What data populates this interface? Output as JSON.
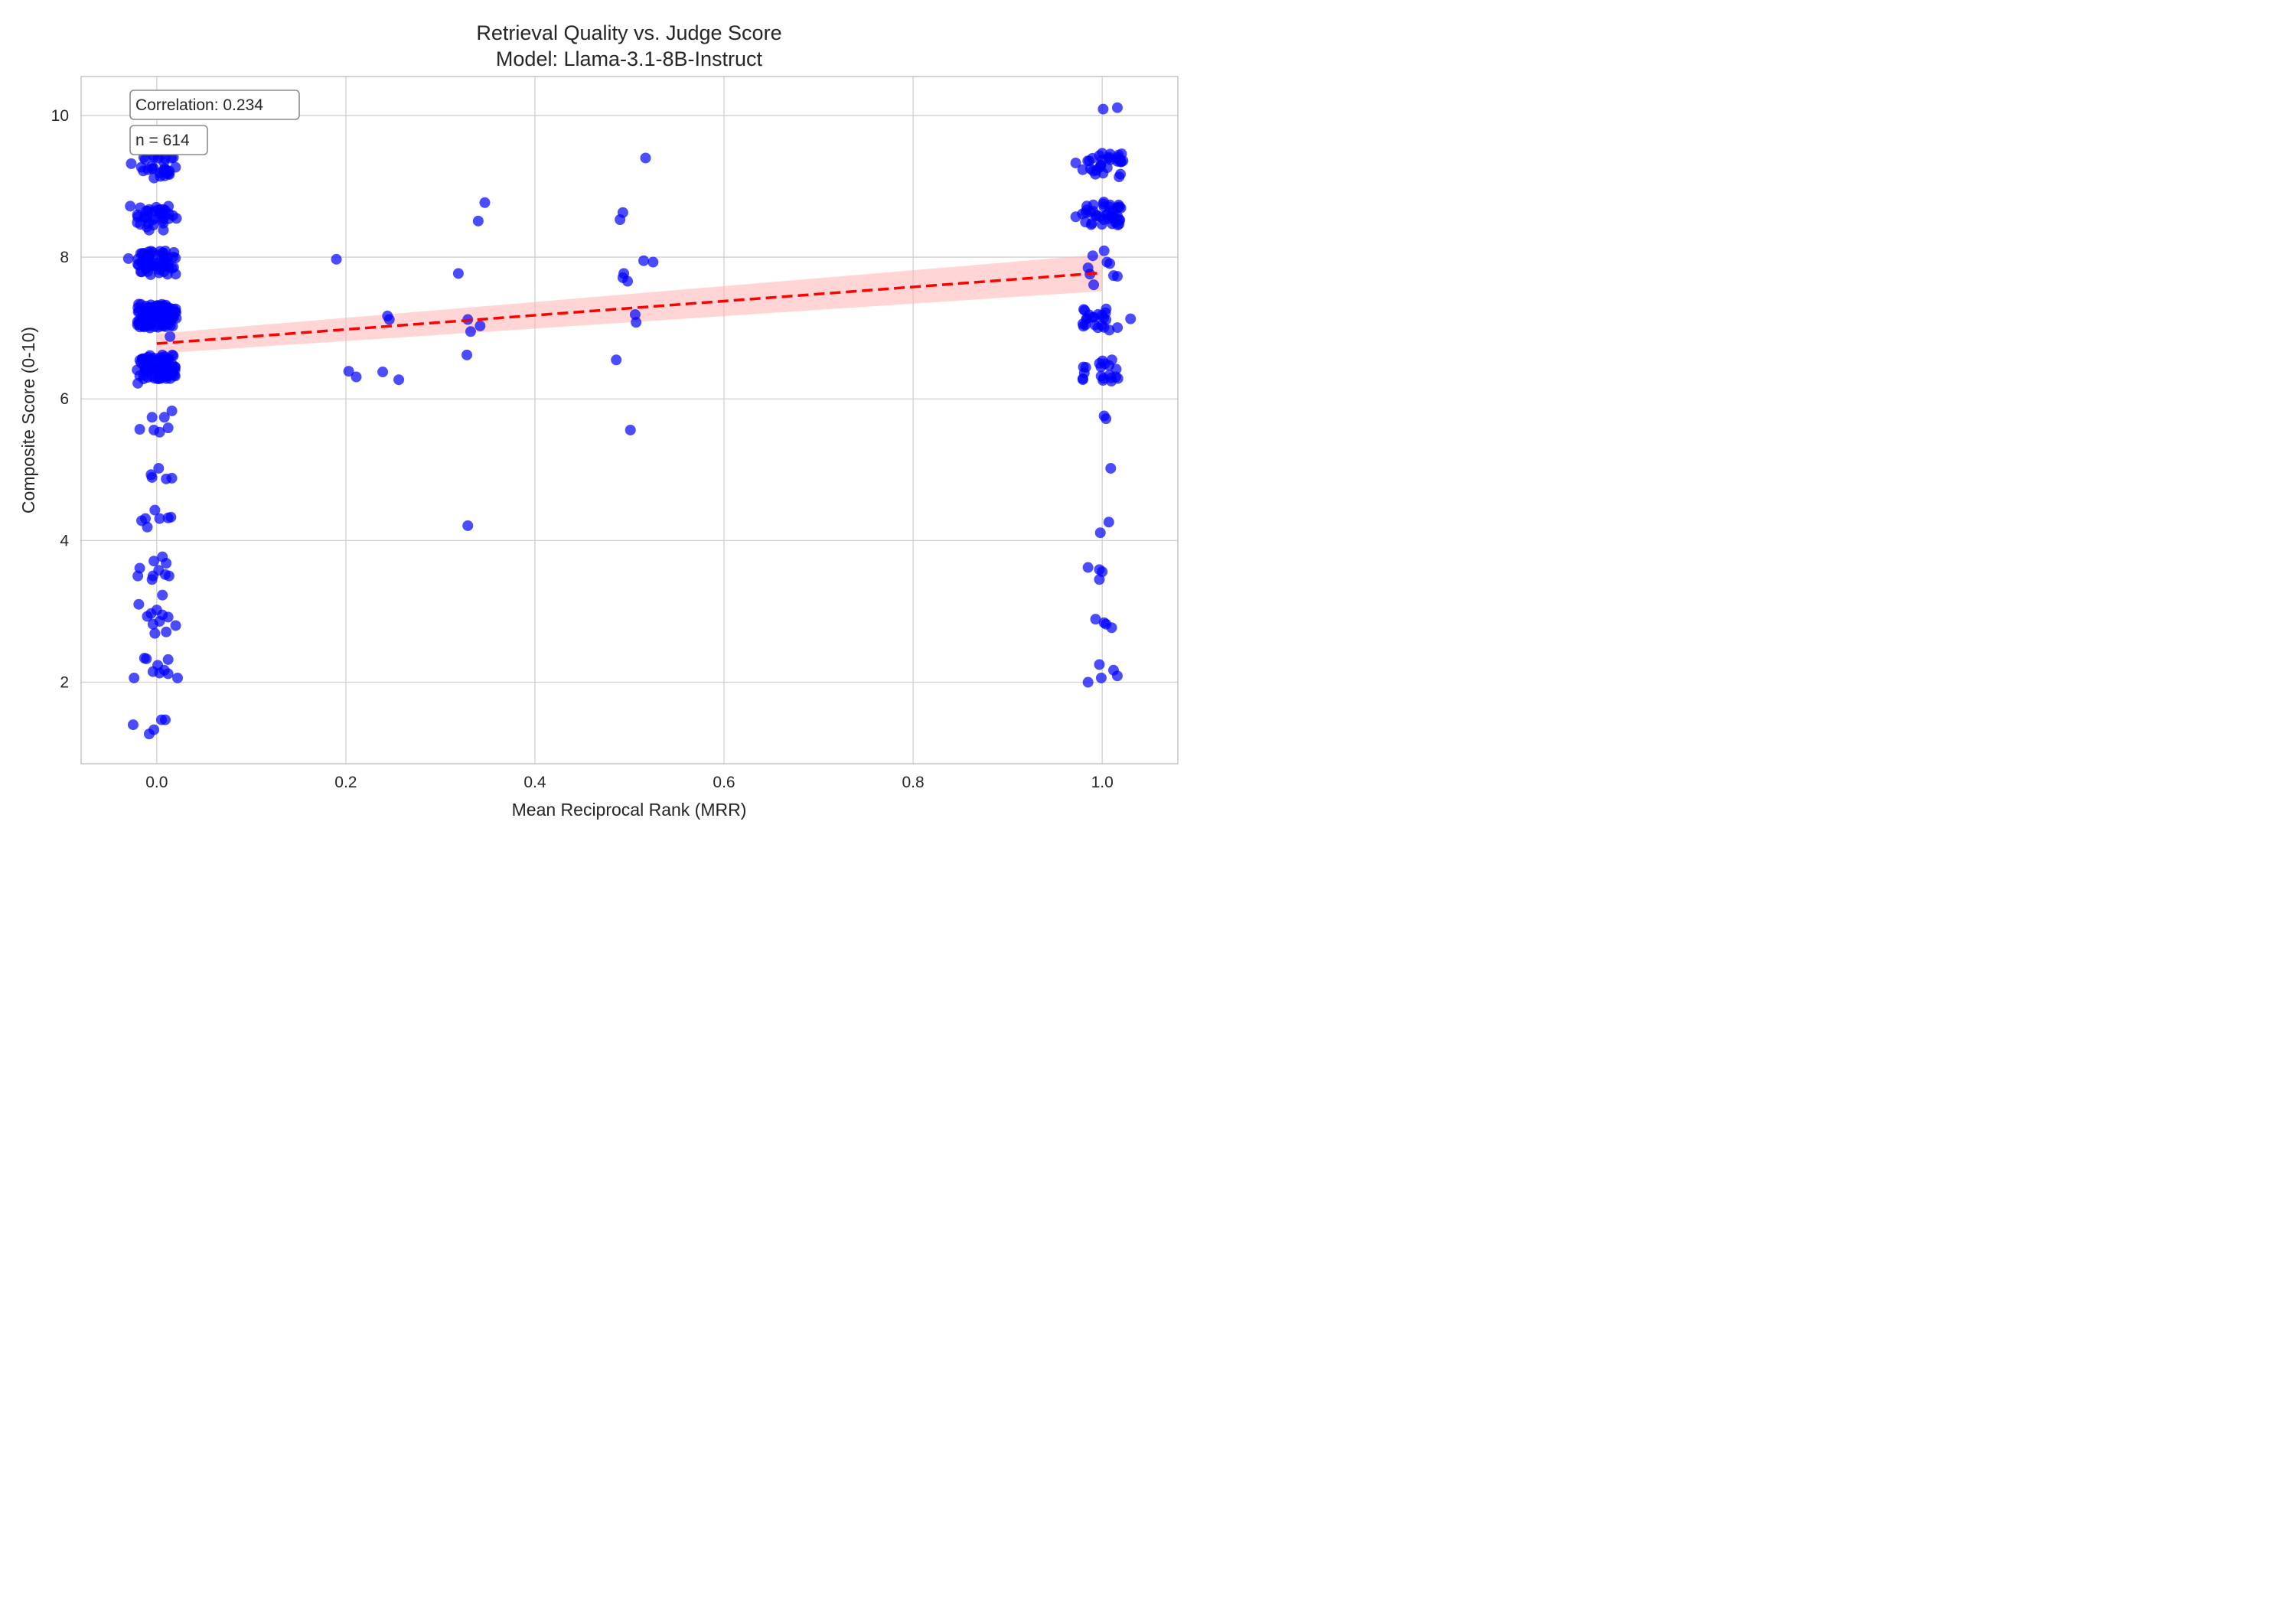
{
  "chart_data": {
    "type": "scatter",
    "title": "Retrieval Quality vs. Judge Score",
    "subtitle": "Model: Llama-3.1-8B-Instruct",
    "xlabel": "Mean Reciprocal Rank (MRR)",
    "ylabel": "Composite Score (0-10)",
    "xlim": [
      -0.08,
      1.08
    ],
    "ylim": [
      0.85,
      10.55
    ],
    "x_ticks": [
      0.0,
      0.2,
      0.4,
      0.6,
      0.8,
      1.0
    ],
    "x_tick_labels": [
      "0.0",
      "0.2",
      "0.4",
      "0.6",
      "0.8",
      "1.0"
    ],
    "y_ticks": [
      2,
      4,
      6,
      8,
      10
    ],
    "y_tick_labels": [
      "2",
      "4",
      "6",
      "8",
      "10"
    ],
    "grid": true,
    "annotations": [
      {
        "text": "Correlation: 0.234",
        "position": "top-left"
      },
      {
        "text": "n = 614",
        "position": "top-left, below correlation"
      }
    ],
    "colors": {
      "points": "#0000ff",
      "trend": "#ff0000",
      "band": "#ffb3b3",
      "grid": "#d0d0d0",
      "axes": "#c0c0c0"
    },
    "trend_line": {
      "style": "dashed",
      "x": [
        0.0,
        1.0
      ],
      "y": [
        6.78,
        7.78
      ]
    },
    "confidence_band": {
      "x": [
        0.0,
        1.0
      ],
      "lower": [
        6.64,
        7.52
      ],
      "upper": [
        6.92,
        8.04
      ]
    },
    "clusters": [
      {
        "x": 0.0,
        "y": 9.28,
        "count": 30
      },
      {
        "x": 0.0,
        "y": 8.55,
        "count": 35
      },
      {
        "x": 0.0,
        "y": 7.92,
        "count": 55
      },
      {
        "x": 0.0,
        "y": 7.17,
        "count": 95
      },
      {
        "x": 0.0,
        "y": 6.45,
        "count": 70
      },
      {
        "x": 1.0,
        "y": 9.3,
        "count": 30
      },
      {
        "x": 1.0,
        "y": 8.62,
        "count": 40
      },
      {
        "x": 1.0,
        "y": 7.12,
        "count": 22
      },
      {
        "x": 1.0,
        "y": 6.42,
        "count": 20
      }
    ],
    "points": [
      {
        "x": -0.03,
        "y": 7.98
      },
      {
        "x": -0.028,
        "y": 8.72
      },
      {
        "x": -0.027,
        "y": 9.32
      },
      {
        "x": -0.02,
        "y": 7.9
      },
      {
        "x": -0.02,
        "y": 6.22
      },
      {
        "x": -0.018,
        "y": 5.57
      },
      {
        "x": -0.005,
        "y": 5.74
      },
      {
        "x": 0.008,
        "y": 5.74
      },
      {
        "x": -0.003,
        "y": 5.56
      },
      {
        "x": 0.003,
        "y": 5.53
      },
      {
        "x": 0.012,
        "y": 5.59
      },
      {
        "x": 0.016,
        "y": 5.83
      },
      {
        "x": 0.002,
        "y": 5.02
      },
      {
        "x": -0.006,
        "y": 4.93
      },
      {
        "x": -0.005,
        "y": 4.89
      },
      {
        "x": 0.01,
        "y": 4.87
      },
      {
        "x": 0.016,
        "y": 4.88
      },
      {
        "x": -0.002,
        "y": 4.43
      },
      {
        "x": -0.012,
        "y": 4.31
      },
      {
        "x": -0.016,
        "y": 4.28
      },
      {
        "x": -0.01,
        "y": 4.19
      },
      {
        "x": 0.003,
        "y": 4.31
      },
      {
        "x": 0.012,
        "y": 4.32
      },
      {
        "x": 0.015,
        "y": 4.33
      },
      {
        "x": -0.003,
        "y": 3.71
      },
      {
        "x": 0.006,
        "y": 3.77
      },
      {
        "x": 0.01,
        "y": 3.68
      },
      {
        "x": -0.018,
        "y": 3.61
      },
      {
        "x": -0.02,
        "y": 3.5
      },
      {
        "x": -0.005,
        "y": 3.45
      },
      {
        "x": -0.004,
        "y": 3.5
      },
      {
        "x": 0.002,
        "y": 3.58
      },
      {
        "x": 0.009,
        "y": 3.52
      },
      {
        "x": 0.013,
        "y": 3.5
      },
      {
        "x": 0.006,
        "y": 3.23
      },
      {
        "x": -0.019,
        "y": 3.1
      },
      {
        "x": -0.01,
        "y": 2.93
      },
      {
        "x": -0.006,
        "y": 2.97
      },
      {
        "x": 0.0,
        "y": 3.02
      },
      {
        "x": -0.004,
        "y": 2.82
      },
      {
        "x": 0.003,
        "y": 2.86
      },
      {
        "x": 0.006,
        "y": 2.95
      },
      {
        "x": 0.012,
        "y": 2.92
      },
      {
        "x": 0.02,
        "y": 2.8
      },
      {
        "x": -0.002,
        "y": 2.69
      },
      {
        "x": 0.01,
        "y": 2.71
      },
      {
        "x": -0.013,
        "y": 2.34
      },
      {
        "x": -0.011,
        "y": 2.33
      },
      {
        "x": 0.012,
        "y": 2.32
      },
      {
        "x": 0.001,
        "y": 2.24
      },
      {
        "x": -0.004,
        "y": 2.15
      },
      {
        "x": 0.003,
        "y": 2.13
      },
      {
        "x": 0.008,
        "y": 2.17
      },
      {
        "x": 0.012,
        "y": 2.12
      },
      {
        "x": -0.024,
        "y": 2.06
      },
      {
        "x": 0.022,
        "y": 2.06
      },
      {
        "x": -0.025,
        "y": 1.4
      },
      {
        "x": -0.008,
        "y": 1.27
      },
      {
        "x": -0.003,
        "y": 1.33
      },
      {
        "x": 0.005,
        "y": 1.47
      },
      {
        "x": 0.009,
        "y": 1.47
      },
      {
        "x": 0.006,
        "y": 6.62
      },
      {
        "x": 0.014,
        "y": 6.88
      },
      {
        "x": 0.19,
        "y": 7.97
      },
      {
        "x": 0.203,
        "y": 6.39
      },
      {
        "x": 0.211,
        "y": 6.31
      },
      {
        "x": 0.239,
        "y": 6.38
      },
      {
        "x": 0.244,
        "y": 7.17
      },
      {
        "x": 0.246,
        "y": 7.12
      },
      {
        "x": 0.256,
        "y": 6.27
      },
      {
        "x": 0.319,
        "y": 7.77
      },
      {
        "x": 0.328,
        "y": 6.62
      },
      {
        "x": 0.329,
        "y": 7.12
      },
      {
        "x": 0.332,
        "y": 6.95
      },
      {
        "x": 0.34,
        "y": 8.51
      },
      {
        "x": 0.342,
        "y": 7.03
      },
      {
        "x": 0.347,
        "y": 8.77
      },
      {
        "x": 0.329,
        "y": 4.21
      },
      {
        "x": 0.486,
        "y": 6.55
      },
      {
        "x": 0.49,
        "y": 8.53
      },
      {
        "x": 0.493,
        "y": 8.63
      },
      {
        "x": 0.493,
        "y": 7.71
      },
      {
        "x": 0.494,
        "y": 7.77
      },
      {
        "x": 0.498,
        "y": 7.66
      },
      {
        "x": 0.501,
        "y": 5.56
      },
      {
        "x": 0.506,
        "y": 7.19
      },
      {
        "x": 0.507,
        "y": 7.08
      },
      {
        "x": 0.515,
        "y": 7.95
      },
      {
        "x": 0.517,
        "y": 9.4
      },
      {
        "x": 0.525,
        "y": 7.93
      },
      {
        "x": 0.985,
        "y": 7.85
      },
      {
        "x": 0.987,
        "y": 7.76
      },
      {
        "x": 0.99,
        "y": 8.02
      },
      {
        "x": 0.991,
        "y": 7.61
      },
      {
        "x": 1.002,
        "y": 8.09
      },
      {
        "x": 1.005,
        "y": 7.93
      },
      {
        "x": 1.008,
        "y": 7.91
      },
      {
        "x": 1.012,
        "y": 7.74
      },
      {
        "x": 1.016,
        "y": 7.73
      },
      {
        "x": 1.002,
        "y": 5.76
      },
      {
        "x": 1.004,
        "y": 5.72
      },
      {
        "x": 1.009,
        "y": 5.02
      },
      {
        "x": 0.998,
        "y": 4.11
      },
      {
        "x": 1.007,
        "y": 4.26
      },
      {
        "x": 0.985,
        "y": 3.62
      },
      {
        "x": 0.997,
        "y": 3.59
      },
      {
        "x": 1.0,
        "y": 3.56
      },
      {
        "x": 0.997,
        "y": 3.45
      },
      {
        "x": 0.993,
        "y": 2.89
      },
      {
        "x": 1.002,
        "y": 2.84
      },
      {
        "x": 1.004,
        "y": 2.82
      },
      {
        "x": 1.01,
        "y": 2.77
      },
      {
        "x": 0.997,
        "y": 2.25
      },
      {
        "x": 1.012,
        "y": 2.17
      },
      {
        "x": 1.016,
        "y": 2.09
      },
      {
        "x": 0.985,
        "y": 2.0
      },
      {
        "x": 0.999,
        "y": 2.06
      },
      {
        "x": 1.001,
        "y": 10.09
      },
      {
        "x": 1.016,
        "y": 10.11
      },
      {
        "x": 0.972,
        "y": 8.57
      },
      {
        "x": 0.972,
        "y": 9.33
      },
      {
        "x": 1.03,
        "y": 7.13
      },
      {
        "x": 1.022,
        "y": 9.36
      }
    ]
  }
}
